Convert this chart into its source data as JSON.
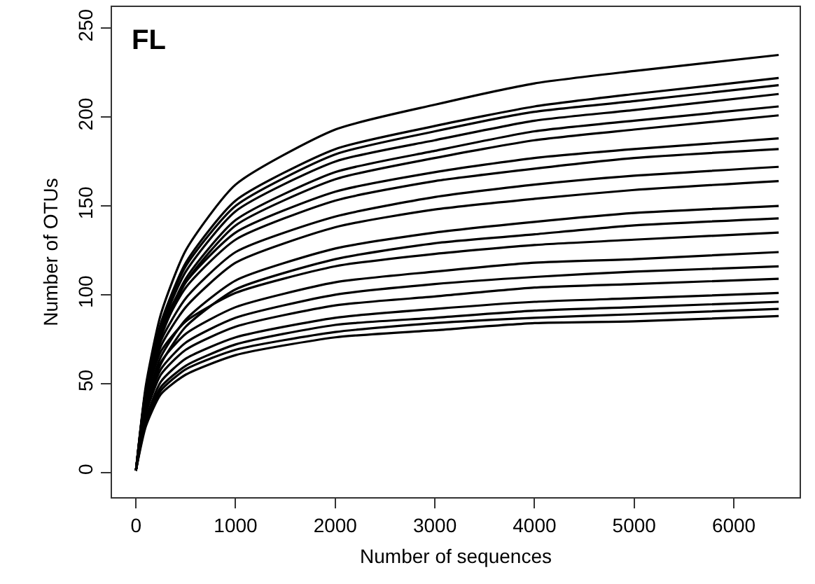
{
  "chart_data": {
    "type": "line",
    "xlabel": "Number of sequences",
    "ylabel": "Number of OTUs",
    "annotations": [
      "FL"
    ],
    "line_style": "solid",
    "xlim": [
      -240,
      6660
    ],
    "ylim": [
      -14,
      262
    ],
    "xticks": [
      0,
      1000,
      2000,
      3000,
      4000,
      5000,
      6000
    ],
    "yticks": [
      0,
      50,
      100,
      150,
      200,
      250
    ],
    "x": [
      0,
      100,
      250,
      500,
      1000,
      2000,
      3000,
      4000,
      5000,
      6450
    ],
    "series": [
      {
        "color": "#000000",
        "values": [
          1,
          49,
          89,
          125,
          162,
          193,
          207,
          219,
          226,
          235
        ]
      },
      {
        "color": "#000000",
        "values": [
          1,
          47,
          84,
          118,
          153,
          182,
          195,
          206,
          213,
          222
        ]
      },
      {
        "color": "#000000",
        "values": [
          1,
          46,
          83,
          116,
          150,
          179,
          192,
          203,
          209,
          218
        ]
      },
      {
        "color": "#000000",
        "values": [
          1,
          45,
          81,
          113,
          147,
          175,
          187,
          198,
          204,
          213
        ]
      },
      {
        "color": "#000000",
        "values": [
          1,
          43,
          78,
          109,
          142,
          169,
          181,
          192,
          198,
          206
        ]
      },
      {
        "color": "#000000",
        "values": [
          1,
          42,
          76,
          107,
          139,
          165,
          177,
          187,
          193,
          201
        ]
      },
      {
        "color": "#000000",
        "values": [
          1,
          47,
          81,
          107,
          135,
          158,
          169,
          177,
          182,
          188
        ]
      },
      {
        "color": "#000000",
        "values": [
          1,
          46,
          78,
          104,
          131,
          153,
          164,
          171,
          177,
          182
        ]
      },
      {
        "color": "#000000",
        "values": [
          1,
          43,
          74,
          98,
          124,
          144,
          155,
          162,
          167,
          172
        ]
      },
      {
        "color": "#000000",
        "values": [
          1,
          41,
          71,
          93,
          118,
          138,
          148,
          154,
          159,
          164
        ]
      },
      {
        "color": "#000000",
        "values": [
          1,
          38,
          65,
          86,
          108,
          126,
          135,
          141,
          146,
          150
        ]
      },
      {
        "color": "#000000",
        "values": [
          1,
          36,
          61,
          82,
          103,
          120,
          129,
          134,
          139,
          143
        ]
      },
      {
        "color": "#000000",
        "values": [
          1,
          41,
          68,
          85,
          101,
          116,
          123,
          128,
          131,
          135
        ]
      },
      {
        "color": "#000000",
        "values": [
          1,
          37,
          62,
          78,
          93,
          107,
          113,
          118,
          120,
          124
        ]
      },
      {
        "color": "#000000",
        "values": [
          1,
          35,
          58,
          73,
          87,
          100,
          106,
          110,
          113,
          116
        ]
      },
      {
        "color": "#000000",
        "values": [
          1,
          33,
          55,
          69,
          82,
          94,
          99,
          104,
          106,
          109
        ]
      },
      {
        "color": "#000000",
        "values": [
          1,
          30,
          51,
          64,
          76,
          87,
          92,
          96,
          98,
          101
        ]
      },
      {
        "color": "#000000",
        "values": [
          1,
          29,
          48,
          60,
          72,
          83,
          87,
          91,
          93,
          96
        ]
      },
      {
        "color": "#000000",
        "values": [
          1,
          28,
          46,
          58,
          69,
          79,
          84,
          87,
          89,
          92
        ]
      },
      {
        "color": "#000000",
        "values": [
          1,
          26,
          44,
          55,
          66,
          76,
          80,
          84,
          85,
          88
        ]
      }
    ]
  }
}
